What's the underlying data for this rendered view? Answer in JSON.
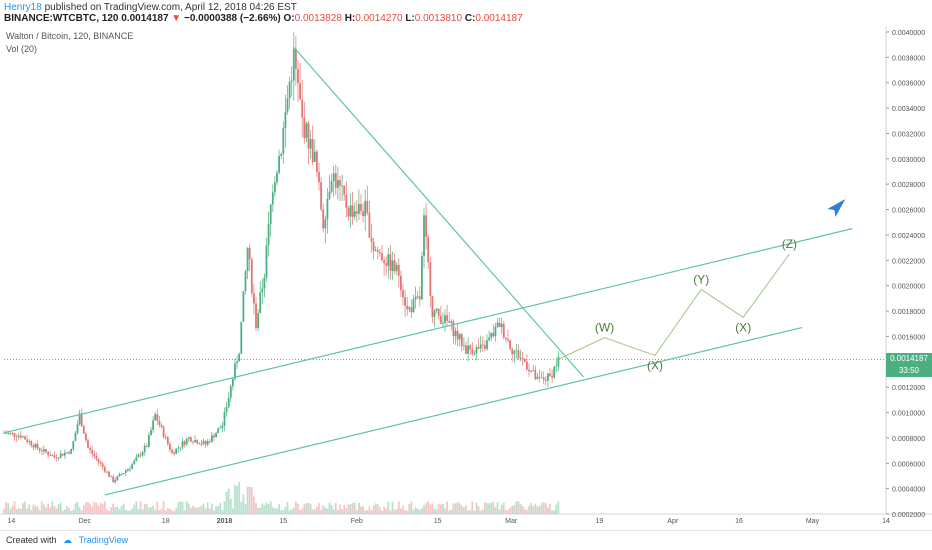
{
  "header": {
    "author": "Henry18",
    "published": "published on TradingView.com, April 12, 2018 04:26 EST",
    "symbol": "BINANCE:WTCBTC, 120",
    "last": "0.0014187",
    "arrow": "▼",
    "change": "−0.0000388 (−2.66%)",
    "o_label": "O:",
    "o": "0.0013828",
    "h_label": "H:",
    "h": "0.0014270",
    "l_label": "L:",
    "l": "0.0013810",
    "c_label": "C:",
    "c": "0.0014187"
  },
  "legend": {
    "line1": "Walton / Bitcoin, 120, BINANCE",
    "line2": "Vol (20)"
  },
  "footer": {
    "created": "Created with",
    "brand": "TradingView"
  },
  "price_tag": {
    "price": "0.0014187",
    "countdown": "33:50"
  },
  "colors": {
    "up": "#4caf82",
    "down": "#e57373",
    "trend": "#5fc4a6",
    "wave": "#a0c48a",
    "arrow": "#2f7fd0",
    "price_line": "#4caf82",
    "wave_label": "#4a7a3a"
  },
  "chart_data": {
    "type": "candlestick",
    "y_axis_side": "right",
    "yticks": [
      "0.0040000",
      "0.0038000",
      "0.0036000",
      "0.0034000",
      "0.0032000",
      "0.0030000",
      "0.0028000",
      "0.0026000",
      "0.0024000",
      "0.0022000",
      "0.0020000",
      "0.0018000",
      "0.0016000",
      "0.0012000",
      "0.0010000",
      "0.0008000",
      "0.0006000",
      "0.0004000",
      "0.0002000"
    ],
    "ylim": [
      0.0002,
      0.004
    ],
    "xticks": [
      "14",
      "Dec",
      "18",
      "2018",
      "15",
      "Feb",
      "15",
      "Mar",
      "19",
      "Apr",
      "16",
      "May",
      "14"
    ],
    "price_series": [
      {
        "x": 0,
        "y": 0.00084
      },
      {
        "x": 4,
        "y": 0.00082
      },
      {
        "x": 8,
        "y": 0.00072
      },
      {
        "x": 12,
        "y": 0.00065
      },
      {
        "x": 16,
        "y": 0.0007
      },
      {
        "x": 18,
        "y": 0.00098
      },
      {
        "x": 20,
        "y": 0.00072
      },
      {
        "x": 24,
        "y": 0.00055
      },
      {
        "x": 26,
        "y": 0.00046
      },
      {
        "x": 30,
        "y": 0.00057
      },
      {
        "x": 34,
        "y": 0.00074
      },
      {
        "x": 36,
        "y": 0.00098
      },
      {
        "x": 40,
        "y": 0.00068
      },
      {
        "x": 44,
        "y": 0.0008
      },
      {
        "x": 48,
        "y": 0.00075
      },
      {
        "x": 52,
        "y": 0.0009
      },
      {
        "x": 54,
        "y": 0.0012
      },
      {
        "x": 56,
        "y": 0.0015
      },
      {
        "x": 58,
        "y": 0.0023
      },
      {
        "x": 60,
        "y": 0.0017
      },
      {
        "x": 62,
        "y": 0.0021
      },
      {
        "x": 64,
        "y": 0.0028
      },
      {
        "x": 66,
        "y": 0.0031
      },
      {
        "x": 68,
        "y": 0.0036
      },
      {
        "x": 69,
        "y": 0.0038
      },
      {
        "x": 71,
        "y": 0.0033
      },
      {
        "x": 74,
        "y": 0.003
      },
      {
        "x": 76,
        "y": 0.0025
      },
      {
        "x": 78,
        "y": 0.0029
      },
      {
        "x": 82,
        "y": 0.0026
      },
      {
        "x": 86,
        "y": 0.0026
      },
      {
        "x": 88,
        "y": 0.0023
      },
      {
        "x": 91,
        "y": 0.0022
      },
      {
        "x": 94,
        "y": 0.0021
      },
      {
        "x": 96,
        "y": 0.0018
      },
      {
        "x": 99,
        "y": 0.0019
      },
      {
        "x": 100,
        "y": 0.0025
      },
      {
        "x": 102,
        "y": 0.0018
      },
      {
        "x": 106,
        "y": 0.0017
      },
      {
        "x": 110,
        "y": 0.0015
      },
      {
        "x": 114,
        "y": 0.0015
      },
      {
        "x": 118,
        "y": 0.0017
      },
      {
        "x": 121,
        "y": 0.0015
      },
      {
        "x": 124,
        "y": 0.0014
      },
      {
        "x": 127,
        "y": 0.00125
      },
      {
        "x": 130,
        "y": 0.00128
      },
      {
        "x": 132,
        "y": 0.00142
      }
    ],
    "trendlines": [
      {
        "name": "channel-upper",
        "x1": 0,
        "y1": 0.00084,
        "x2": 202,
        "y2": 0.00245
      },
      {
        "name": "channel-lower",
        "x1": 24,
        "y1": 0.00035,
        "x2": 190,
        "y2": 0.00167
      },
      {
        "name": "descending",
        "x1": 69,
        "y1": 0.00388,
        "x2": 138,
        "y2": 0.00128
      }
    ],
    "wave_projection": [
      {
        "x": 132,
        "y": 0.00142,
        "label": ""
      },
      {
        "x": 143,
        "y": 0.00159,
        "label": "(W)"
      },
      {
        "x": 155,
        "y": 0.00145,
        "label": "(X)"
      },
      {
        "x": 166,
        "y": 0.00197,
        "label": "(Y)"
      },
      {
        "x": 176,
        "y": 0.00175,
        "label": "(X)"
      },
      {
        "x": 187,
        "y": 0.00225,
        "label": "(Z)"
      }
    ],
    "current_price": 0.0014187,
    "xlim": [
      0,
      210
    ]
  }
}
